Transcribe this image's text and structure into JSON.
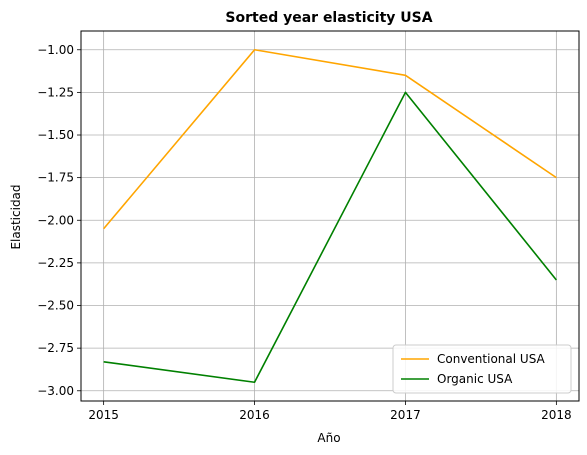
{
  "chart_data": {
    "type": "line",
    "title": "Sorted year elasticity USA",
    "xlabel": "Año",
    "ylabel": "Elasticidad",
    "x": [
      2015,
      2016,
      2017,
      2018
    ],
    "x_tick_labels": [
      "2015",
      "2016",
      "2017",
      "2018"
    ],
    "xlim": [
      2014.85,
      2018.15
    ],
    "ylim": [
      -3.06,
      -0.89
    ],
    "y_ticks": [
      -1.0,
      -1.25,
      -1.5,
      -1.75,
      -2.0,
      -2.25,
      -2.5,
      -2.75,
      -3.0
    ],
    "y_tick_labels": [
      "−1.00",
      "−1.25",
      "−1.50",
      "−1.75",
      "−2.00",
      "−2.25",
      "−2.50",
      "−2.75",
      "−3.00"
    ],
    "grid": true,
    "legend_position": "lower-right",
    "series": [
      {
        "name": "Conventional USA",
        "color": "#ffa500",
        "values": [
          -2.05,
          -1.0,
          -1.15,
          -1.75
        ]
      },
      {
        "name": "Organic USA",
        "color": "#008000",
        "values": [
          -2.83,
          -2.95,
          -1.25,
          -2.35
        ]
      }
    ]
  }
}
